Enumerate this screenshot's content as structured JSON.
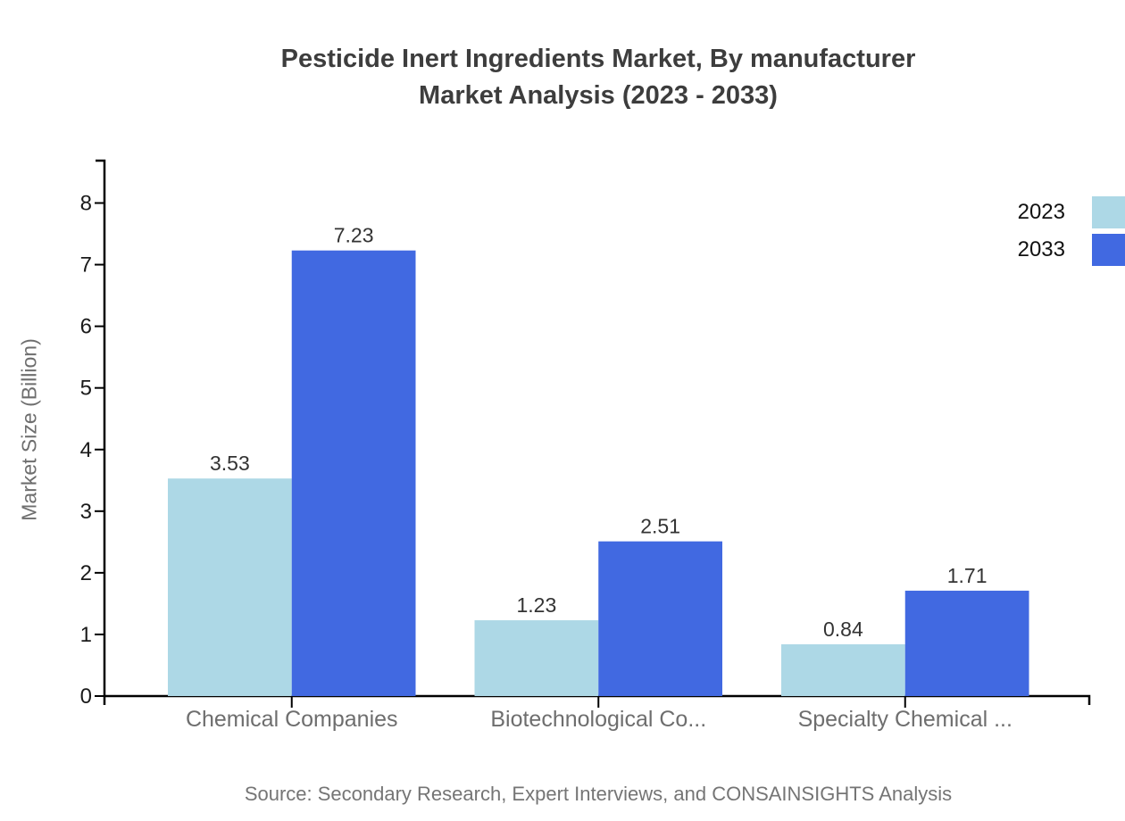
{
  "title": {
    "line1": "Pesticide Inert Ingredients Market, By manufacturer",
    "line2": "Market Analysis (2023 - 2033)"
  },
  "source": "Source: Secondary Research, Expert Interviews, and CONSAINSIGHTS Analysis",
  "colors": {
    "bar_2023": "#add8e6",
    "bar_2033": "#4169e1",
    "axis": "#000000",
    "title_text": "#3d3d3d",
    "category_text": "#6e6e6e",
    "source_text": "#757575",
    "value_text": "#333333",
    "tick_text": "#1a1a1a"
  },
  "chart_data": {
    "type": "bar",
    "title": "Pesticide Inert Ingredients Market, By manufacturer Market Analysis (2023 - 2033)",
    "categories": [
      "Chemical Companies",
      "Biotechnological Co...",
      "Specialty Chemical ..."
    ],
    "series": [
      {
        "name": "2023",
        "color": "#add8e6",
        "values": [
          3.53,
          1.23,
          0.84
        ]
      },
      {
        "name": "2033",
        "color": "#4169e1",
        "values": [
          7.23,
          2.51,
          1.71
        ]
      }
    ],
    "xlabel": "",
    "ylabel": "Market Size (Billion)",
    "ylim": [
      0,
      8.7
    ],
    "yticks": [
      0,
      1,
      2,
      3,
      4,
      5,
      6,
      7,
      8
    ],
    "grid": false,
    "legend_position": "top-right",
    "value_labels": true
  }
}
